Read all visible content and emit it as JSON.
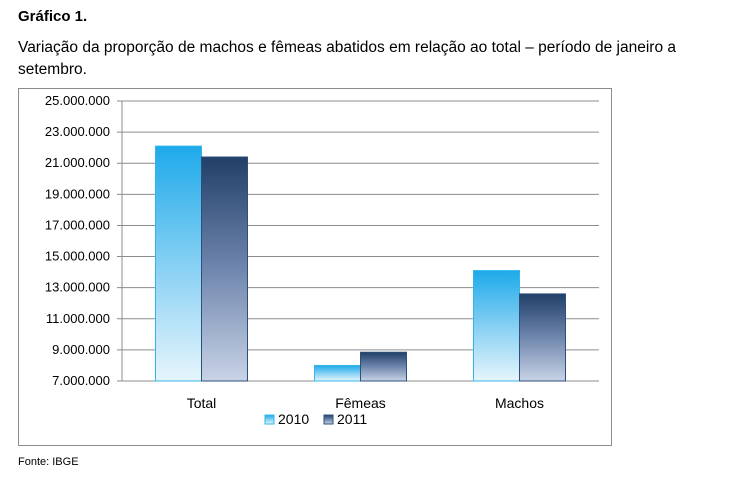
{
  "header": {
    "label": "Gráfico 1.",
    "caption": "Variação da proporção de machos e fêmeas abatidos em relação ao total – período de janeiro a setembro."
  },
  "footer": {
    "source": "Fonte: IBGE"
  },
  "colors": {
    "series_2010": "#33b6ec",
    "series_2011": "#2c4f7c",
    "grid": "#8c8c8c"
  },
  "chart_data": {
    "type": "bar",
    "categories": [
      "Total",
      "Fêmeas",
      "Machos"
    ],
    "series": [
      {
        "name": "2010",
        "values": [
          22100000,
          8000000,
          14100000
        ]
      },
      {
        "name": "2011",
        "values": [
          21400000,
          8850000,
          12600000
        ]
      }
    ],
    "ylim": [
      7000000,
      25000000
    ],
    "yticks": [
      "7.000.000",
      "9.000.000",
      "11.000.000",
      "13.000.000",
      "15.000.000",
      "17.000.000",
      "19.000.000",
      "21.000.000",
      "23.000.000",
      "25.000.000"
    ],
    "grid": true,
    "legend_position": "bottom",
    "xlabel": "",
    "ylabel": ""
  }
}
